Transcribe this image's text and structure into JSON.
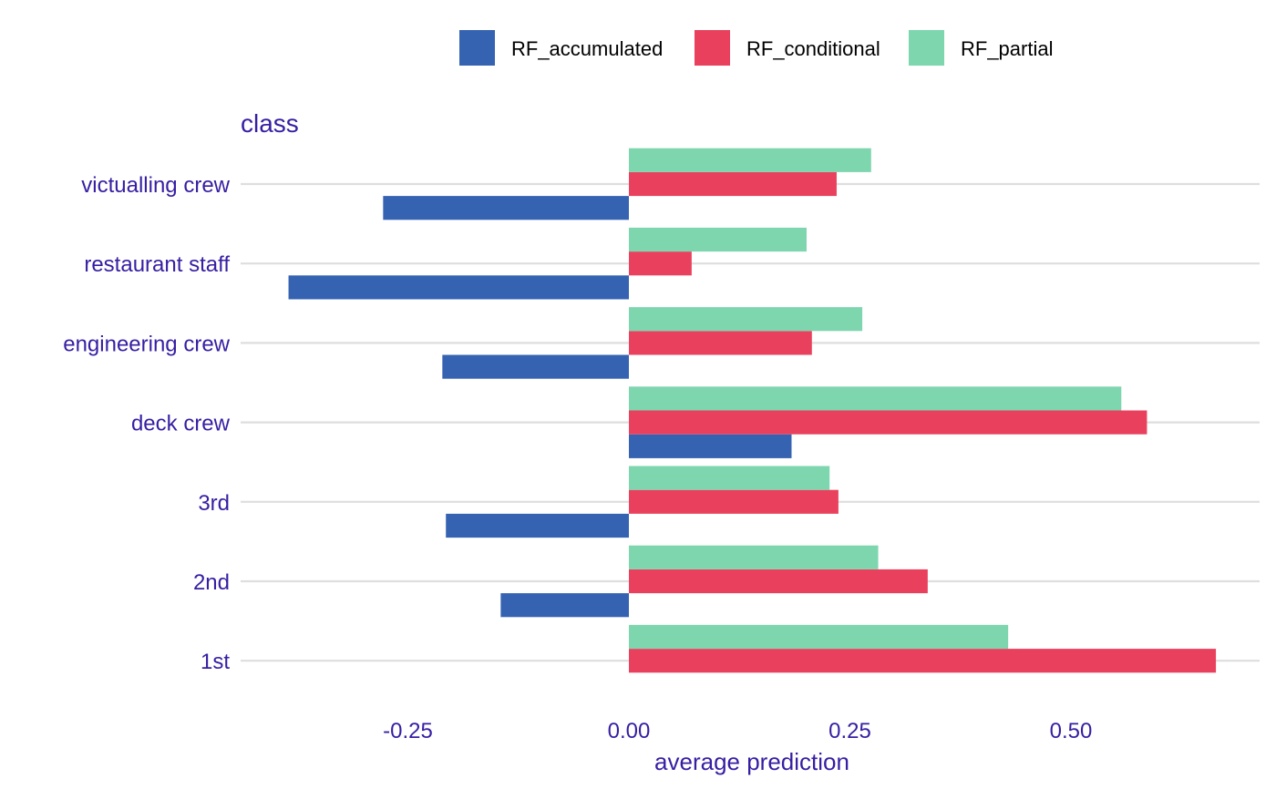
{
  "chart_data": {
    "type": "bar",
    "orientation": "horizontal",
    "panel_title": "class",
    "xlabel": "average prediction",
    "ylabel": "",
    "categories": [
      "victualling crew",
      "restaurant staff",
      "engineering crew",
      "deck crew",
      "3rd",
      "2nd",
      "1st"
    ],
    "series": [
      {
        "name": "RF_accumulated",
        "color": "#3563b1",
        "values": [
          -0.278,
          -0.385,
          -0.211,
          0.184,
          -0.207,
          -0.145,
          0.0
        ]
      },
      {
        "name": "RF_conditional",
        "color": "#e9415d",
        "values": [
          0.235,
          0.071,
          0.207,
          0.586,
          0.237,
          0.338,
          0.664
        ]
      },
      {
        "name": "RF_partial",
        "color": "#7dd6ae",
        "values": [
          0.274,
          0.201,
          0.264,
          0.557,
          0.227,
          0.282,
          0.429
        ]
      }
    ],
    "xticks": [
      -0.25,
      0.0,
      0.25,
      0.5
    ],
    "xtick_labels": [
      "-0.25",
      "0.00",
      "0.25",
      "0.50"
    ],
    "xlim": [
      -0.44,
      0.7
    ],
    "grid": "horizontal",
    "legend_position": "top"
  }
}
